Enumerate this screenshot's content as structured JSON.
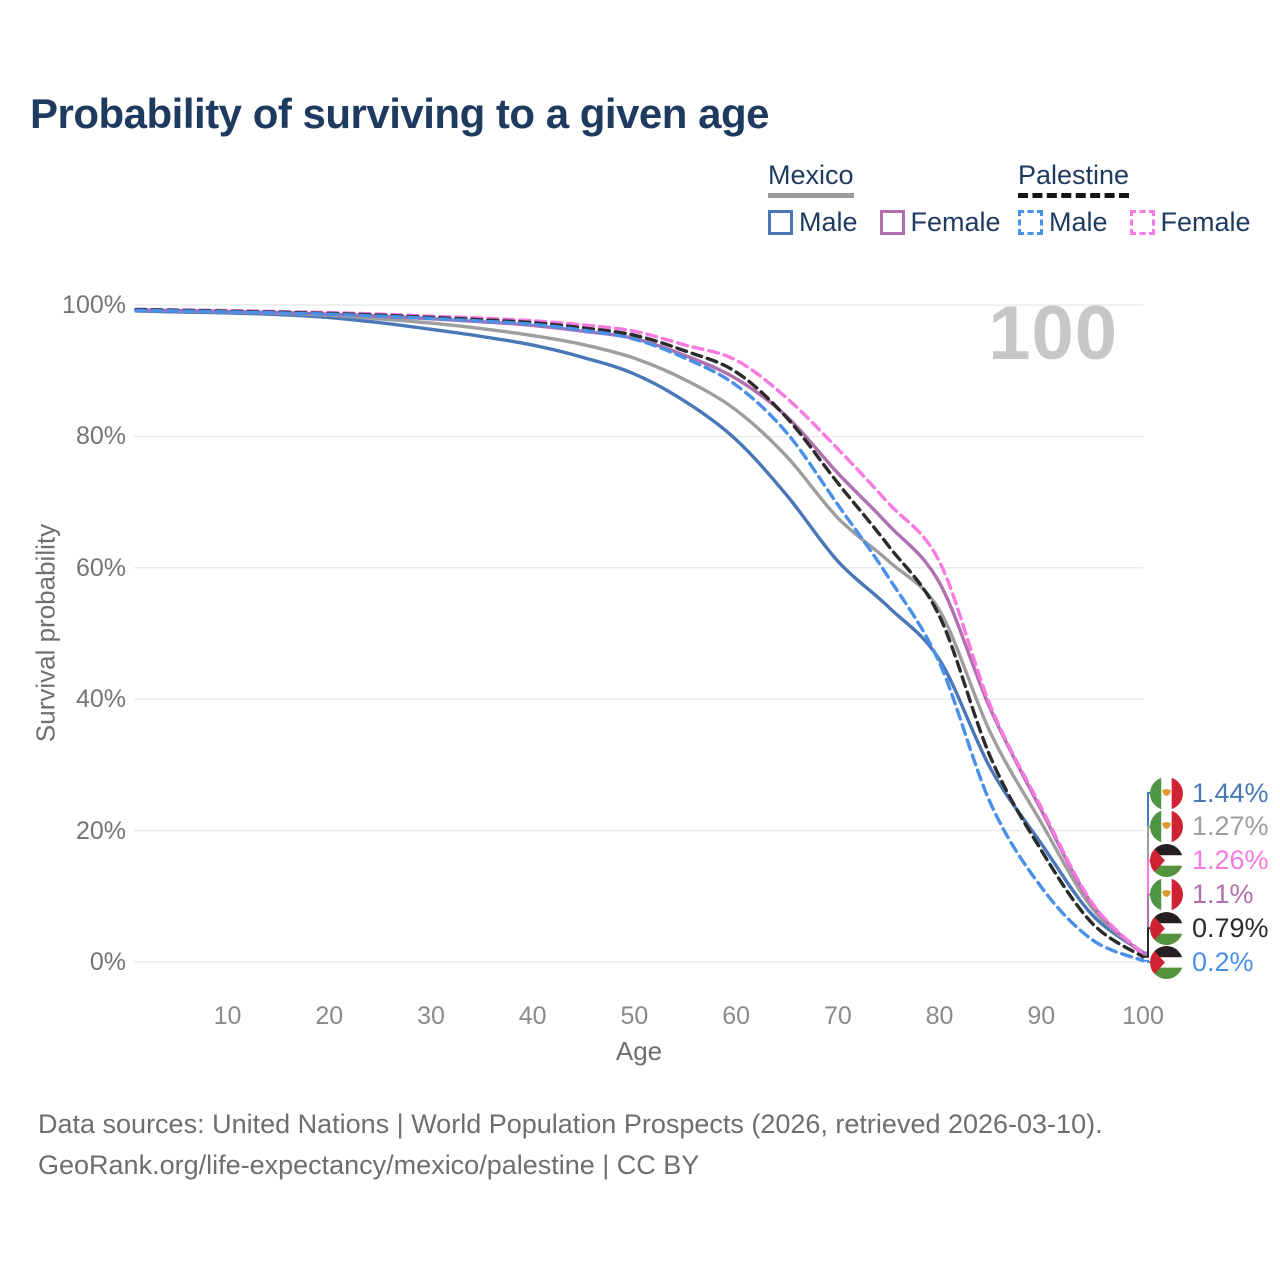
{
  "title": "Probability of surviving to a given age",
  "watermark": "100",
  "legend": {
    "groups": [
      {
        "name": "Mexico",
        "line_style": "solid",
        "underline_color": "#9a9a9a",
        "items": [
          {
            "label": "Male",
            "color": "#4a77b8",
            "dashed": false
          },
          {
            "label": "Female",
            "color": "#b06fae",
            "dashed": false
          }
        ]
      },
      {
        "name": "Palestine",
        "line_style": "dashed",
        "underline_color": "#161616",
        "items": [
          {
            "label": "Male",
            "color": "#4a90e8",
            "dashed": true
          },
          {
            "label": "Female",
            "color": "#f87ae0",
            "dashed": true
          }
        ]
      }
    ]
  },
  "chart_data": {
    "type": "line",
    "title": "Probability of surviving to a given age",
    "xlabel": "Age",
    "ylabel": "Survival probability",
    "xlim": [
      1,
      100
    ],
    "ylim": [
      0,
      100
    ],
    "x_ticks": [
      10,
      20,
      30,
      40,
      50,
      60,
      70,
      80,
      90,
      100
    ],
    "y_ticks": [
      "0%",
      "20%",
      "40%",
      "60%",
      "80%",
      "100%"
    ],
    "grid": "horizontal",
    "legend_position": "top-right",
    "hover_age": 100,
    "ages": [
      1,
      5,
      10,
      15,
      20,
      25,
      30,
      35,
      40,
      45,
      50,
      55,
      60,
      65,
      70,
      75,
      80,
      85,
      90,
      95,
      100
    ],
    "series": [
      {
        "name": "Mexico Male",
        "country": "Mexico",
        "flag": "mexico",
        "color": "#4a77b8",
        "dashed": false,
        "end_label": "1.44%",
        "values": [
          99.1,
          98.95,
          98.8,
          98.55,
          98.1,
          97.3,
          96.3,
          95.2,
          93.9,
          92.0,
          89.5,
          85.3,
          79.5,
          71.0,
          61.0,
          54.0,
          46.0,
          29.5,
          18.0,
          7.2,
          1.44
        ]
      },
      {
        "name": "Mexico Both sexes",
        "country": "Mexico",
        "flag": "mexico",
        "color": "#9e9e9e",
        "dashed": false,
        "end_label": "1.27%",
        "values": [
          99.2,
          99.1,
          98.95,
          98.75,
          98.45,
          97.9,
          97.25,
          96.4,
          95.35,
          93.95,
          91.9,
          88.6,
          84.0,
          76.9,
          67.6,
          61.0,
          53.5,
          34.9,
          21.2,
          8.2,
          1.27
        ]
      },
      {
        "name": "Palestine Female",
        "country": "Palestine",
        "flag": "palestine",
        "color": "#f87ae0",
        "dashed": true,
        "end_label": "1.26%",
        "values": [
          99.35,
          99.25,
          99.15,
          99.0,
          98.85,
          98.6,
          98.3,
          98.0,
          97.6,
          96.95,
          96.0,
          93.9,
          91.6,
          85.8,
          78.1,
          69.8,
          60.9,
          39.0,
          23.5,
          9.0,
          1.26
        ]
      },
      {
        "name": "Mexico Female",
        "country": "Mexico",
        "flag": "mexico",
        "color": "#b06fae",
        "dashed": false,
        "end_label": "1.1%",
        "values": [
          99.25,
          99.15,
          99.0,
          98.85,
          98.6,
          98.3,
          97.9,
          97.45,
          96.9,
          96.0,
          94.9,
          92.3,
          88.8,
          83.0,
          74.4,
          66.5,
          57.7,
          38.5,
          23.1,
          8.8,
          1.1
        ]
      },
      {
        "name": "Palestine Both sexes",
        "country": "Palestine",
        "flag": "palestine",
        "color": "#2b2b2b",
        "dashed": true,
        "end_label": "0.79%",
        "values": [
          99.3,
          99.2,
          99.05,
          98.9,
          98.7,
          98.45,
          98.1,
          97.75,
          97.3,
          96.5,
          95.4,
          93.0,
          89.8,
          82.8,
          72.9,
          63.3,
          52.6,
          31.2,
          17.0,
          5.9,
          0.79
        ]
      },
      {
        "name": "Palestine Male",
        "country": "Palestine",
        "flag": "palestine",
        "color": "#4a90e8",
        "dashed": true,
        "end_label": "0.2%",
        "values": [
          99.2,
          99.1,
          98.95,
          98.8,
          98.6,
          98.3,
          97.95,
          97.55,
          97.05,
          96.15,
          94.8,
          91.9,
          87.8,
          80.5,
          69.6,
          58.5,
          45.5,
          24.2,
          11.4,
          3.4,
          0.2
        ]
      }
    ]
  },
  "footer": {
    "line1": "Data sources: United Nations | World Population Prospects (2026, retrieved 2026-03-10).",
    "line2": "GeoRank.org/life-expectancy/mexico/palestine | CC BY"
  }
}
